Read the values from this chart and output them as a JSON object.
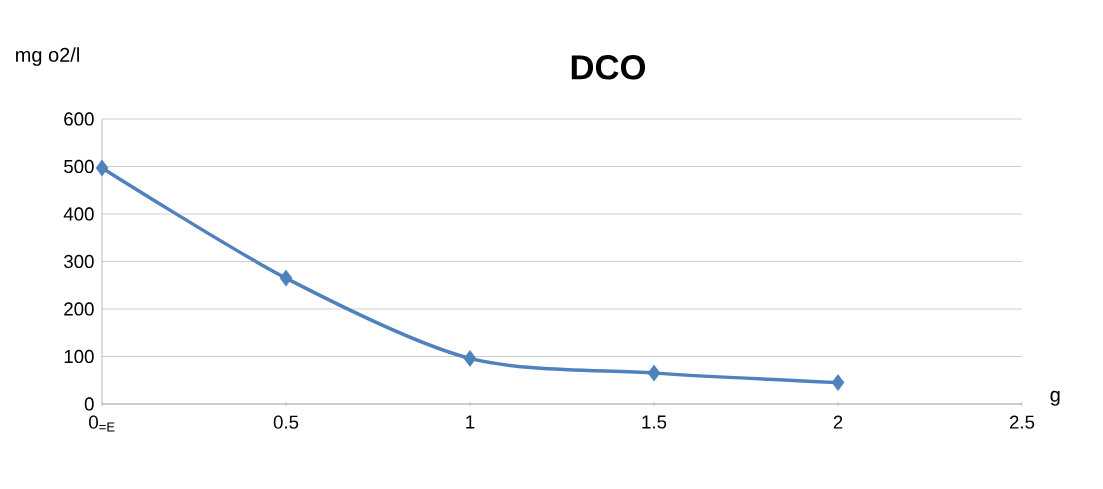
{
  "chart_data": {
    "type": "line",
    "title": "DCO",
    "xlabel": "g",
    "ylabel": "mg o2/l",
    "x": [
      0,
      0.5,
      1,
      1.5,
      2
    ],
    "series": [
      {
        "color": "#4f81bd",
        "values": [
          497,
          265,
          96,
          65,
          45
        ]
      }
    ],
    "xlim": [
      0,
      2.5
    ],
    "ylim": [
      0,
      600
    ],
    "xticks": [
      {
        "value": 0,
        "label": "0$_{=E}$"
      },
      0.5,
      1,
      1.5,
      2,
      2.5
    ],
    "yticks": [
      0,
      100,
      200,
      300,
      400,
      500,
      600
    ],
    "grid": "y",
    "marker": "diamond",
    "line_style": "solid"
  }
}
